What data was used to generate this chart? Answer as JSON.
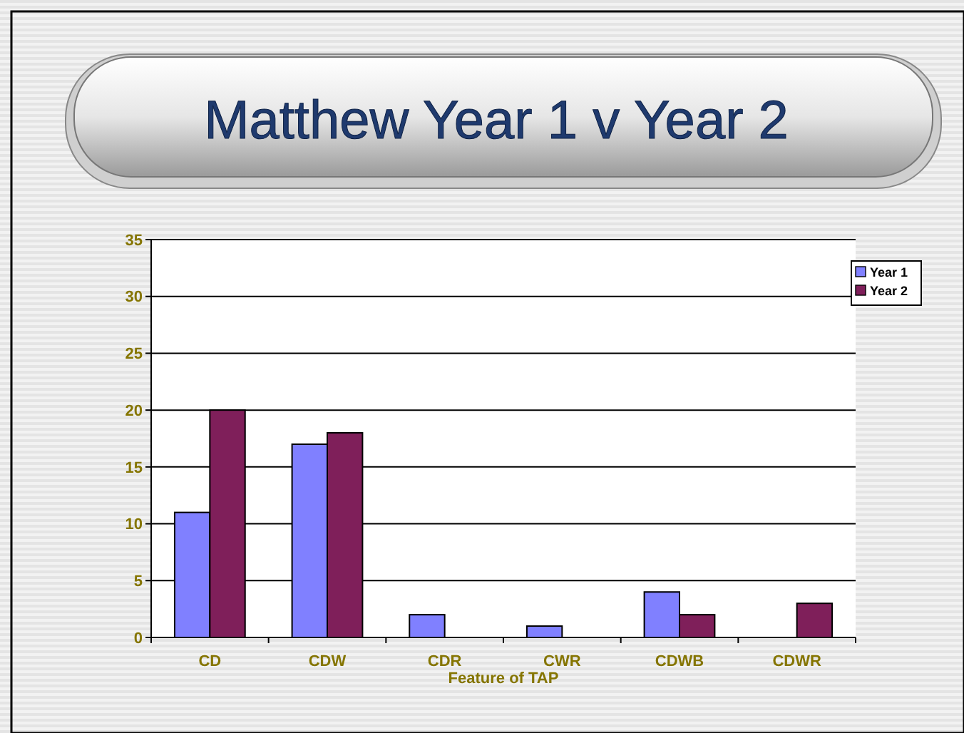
{
  "chart_data": {
    "type": "bar",
    "title": "Matthew Year 1 v Year 2",
    "xlabel": "Feature of TAP",
    "categories": [
      "CD",
      "CDW",
      "CDR",
      "CWR",
      "CDWB",
      "CDWR"
    ],
    "series": [
      {
        "name": "Year 1",
        "color": "#8080ff",
        "values": [
          11,
          17,
          2,
          1,
          4,
          0
        ]
      },
      {
        "name": "Year 2",
        "color": "#7f1f5a",
        "values": [
          20,
          18,
          0,
          0,
          2,
          3
        ]
      }
    ],
    "ylim": [
      0,
      35
    ],
    "yticks": [
      0,
      5,
      10,
      15,
      20,
      25,
      30,
      35
    ],
    "grid": "y",
    "legend": "right"
  }
}
